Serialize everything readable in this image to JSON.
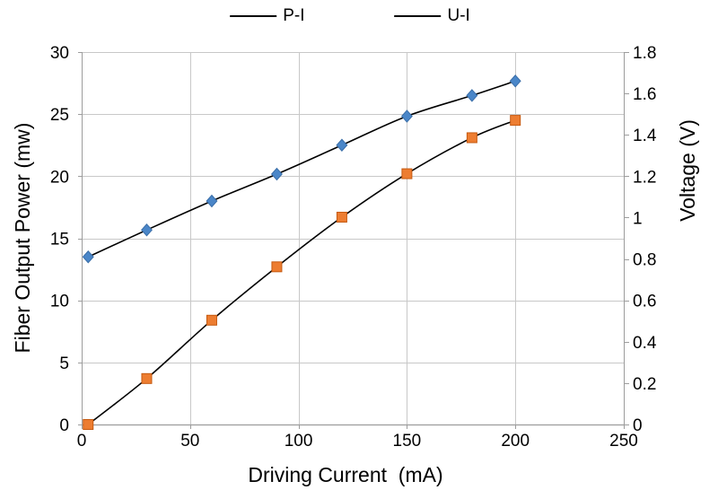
{
  "chart_data": {
    "type": "line",
    "title": "",
    "xlabel": "Driving Current  (mA)",
    "ylabel_left": "Fiber Output Power (mw)",
    "ylabel_right": "Voltage (V)",
    "xlim": [
      0,
      250
    ],
    "ylim_left": [
      0,
      30
    ],
    "ylim_right": [
      0,
      1.8
    ],
    "x_ticks": [
      0,
      50,
      100,
      150,
      200,
      250
    ],
    "y_left_ticks": [
      0,
      5,
      10,
      15,
      20,
      25,
      30
    ],
    "y_right_ticks": [
      0,
      0.2,
      0.4,
      0.6,
      0.8,
      1,
      1.2,
      1.4,
      1.6,
      1.8
    ],
    "grid": true,
    "legend_position": "top-center",
    "x": [
      3,
      30,
      60,
      90,
      120,
      150,
      180,
      200
    ],
    "series": [
      {
        "name": "P-I",
        "axis": "left",
        "marker": "square",
        "marker_color": "#ED7D31",
        "marker_edge_color": "#C55A11",
        "line_color": "#000000",
        "values": [
          0,
          3.7,
          8.4,
          12.7,
          16.7,
          20.2,
          23.1,
          24.5
        ]
      },
      {
        "name": "U-I",
        "axis": "right",
        "marker": "diamond",
        "marker_color": "#4A86C8",
        "marker_edge_color": "#3A6EA8",
        "line_color": "#000000",
        "values": [
          0.81,
          0.94,
          1.08,
          1.21,
          1.35,
          1.49,
          1.59,
          1.66
        ]
      }
    ],
    "style": {
      "gridline_color": "#C8C8C8",
      "axis_color": "#9C9C9C",
      "tick_label_color": "#000000",
      "tick_font_size": 19
    }
  },
  "legend": {
    "items": [
      {
        "label": "P-I"
      },
      {
        "label": "U-I"
      }
    ]
  }
}
